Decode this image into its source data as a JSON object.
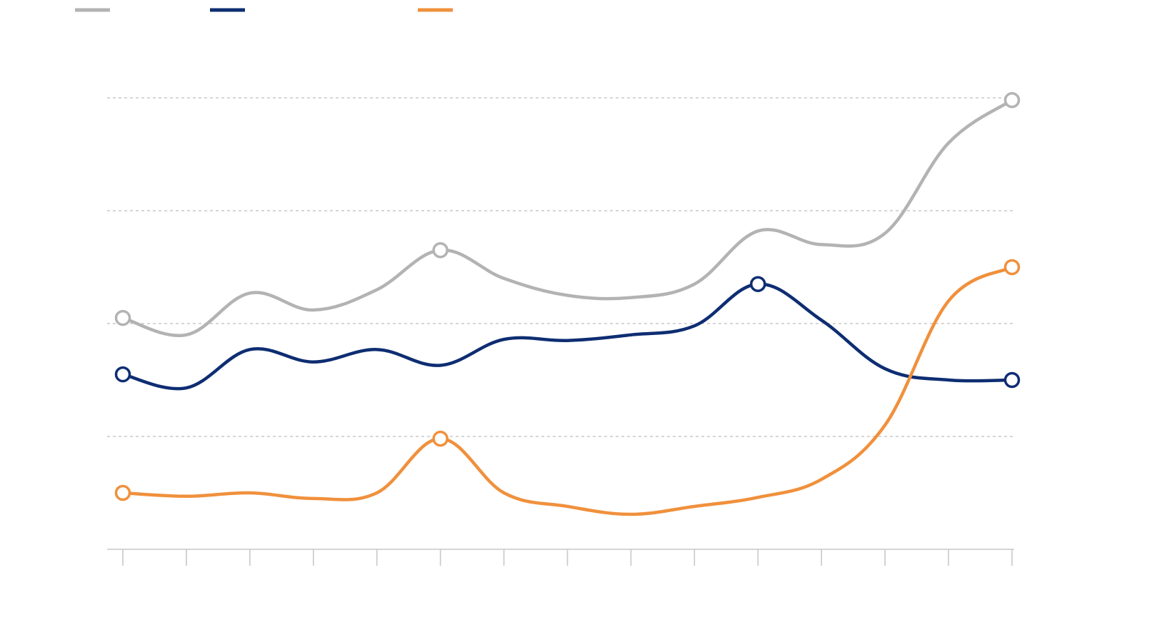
{
  "chart_data": {
    "type": "line",
    "title": "",
    "xlabel": "",
    "ylabel": "",
    "x": [
      1,
      2,
      3,
      4,
      5,
      6,
      7,
      8,
      9,
      10,
      11,
      12,
      13,
      14,
      15
    ],
    "ylim": [
      0,
      4
    ],
    "grid_y": [
      1,
      2,
      3,
      4
    ],
    "grid": "horizontal-dashed",
    "legend": "top-left",
    "series": [
      {
        "color": "#b3b3b3",
        "values": [
          2.05,
          1.9,
          2.27,
          2.12,
          2.3,
          2.65,
          2.4,
          2.25,
          2.23,
          2.35,
          2.82,
          2.7,
          2.8,
          3.6,
          3.98
        ],
        "markers": [
          0,
          5,
          14
        ]
      },
      {
        "color": "#0e2d72",
        "values": [
          1.55,
          1.43,
          1.77,
          1.66,
          1.77,
          1.63,
          1.86,
          1.85,
          1.9,
          1.98,
          2.35,
          2.03,
          1.6,
          1.5,
          1.5
        ],
        "markers": [
          0,
          10,
          14
        ]
      },
      {
        "color": "#f0903c",
        "values": [
          0.5,
          0.47,
          0.5,
          0.45,
          0.5,
          0.98,
          0.5,
          0.38,
          0.31,
          0.38,
          0.46,
          0.62,
          1.1,
          2.2,
          2.5
        ],
        "markers": [
          0,
          5,
          14
        ]
      }
    ]
  }
}
